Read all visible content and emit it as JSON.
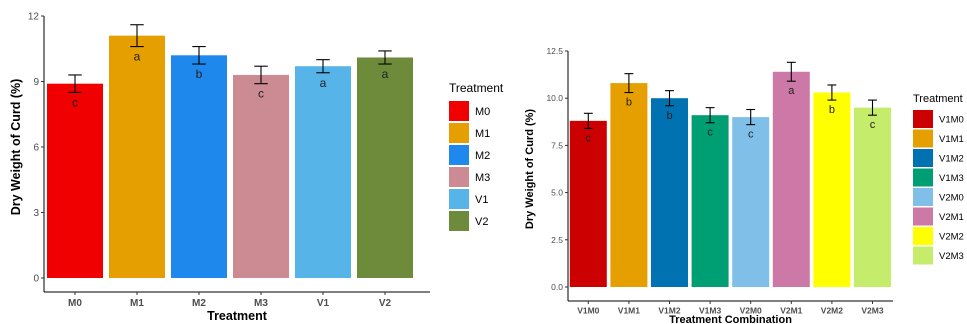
{
  "chart_data": [
    {
      "type": "bar",
      "title": "",
      "xlabel": "Treatment",
      "ylabel": "Dry Weight of Curd (%)",
      "ylim": [
        0,
        12
      ],
      "yticks": [
        "0",
        "3",
        "6",
        "9",
        "12"
      ],
      "grid": false,
      "legend": {
        "title": "Treatment",
        "placement": "right"
      },
      "categories": [
        "M0",
        "M1",
        "M2",
        "M3",
        "V1",
        "V2"
      ],
      "values": [
        8.9,
        11.1,
        10.2,
        9.3,
        9.7,
        10.1
      ],
      "errors": [
        0.4,
        0.5,
        0.4,
        0.4,
        0.3,
        0.3
      ],
      "letters": [
        "c",
        "a",
        "b",
        "c",
        "a",
        "a"
      ],
      "colors": [
        "#f00000",
        "#e69f00",
        "#1f88ed",
        "#cc8a92",
        "#56b4e9",
        "#6e8a3b"
      ]
    },
    {
      "type": "bar",
      "title": "",
      "xlabel": "Treatment Combination",
      "ylabel": "Dry Weight of Curd (%)",
      "ylim": [
        0,
        12.5
      ],
      "yticks": [
        "0.0",
        "2.5",
        "5.0",
        "7.5",
        "10.0",
        "12.5"
      ],
      "grid": false,
      "legend": {
        "title": "Treatment",
        "placement": "right"
      },
      "categories": [
        "V1M0",
        "V1M1",
        "V1M2",
        "V1M3",
        "V2M0",
        "V2M1",
        "V2M2",
        "V2M3"
      ],
      "values": [
        8.8,
        10.8,
        10.0,
        9.1,
        9.0,
        11.4,
        10.3,
        9.5
      ],
      "errors": [
        0.4,
        0.5,
        0.4,
        0.4,
        0.4,
        0.5,
        0.4,
        0.4
      ],
      "letters": [
        "c",
        "b",
        "b",
        "c",
        "c",
        "a",
        "b",
        "c"
      ],
      "colors": [
        "#cc0000",
        "#e69f00",
        "#0072b2",
        "#009e73",
        "#7fbfe8",
        "#cc79a7",
        "#ffff00",
        "#c5ec6a"
      ]
    }
  ]
}
